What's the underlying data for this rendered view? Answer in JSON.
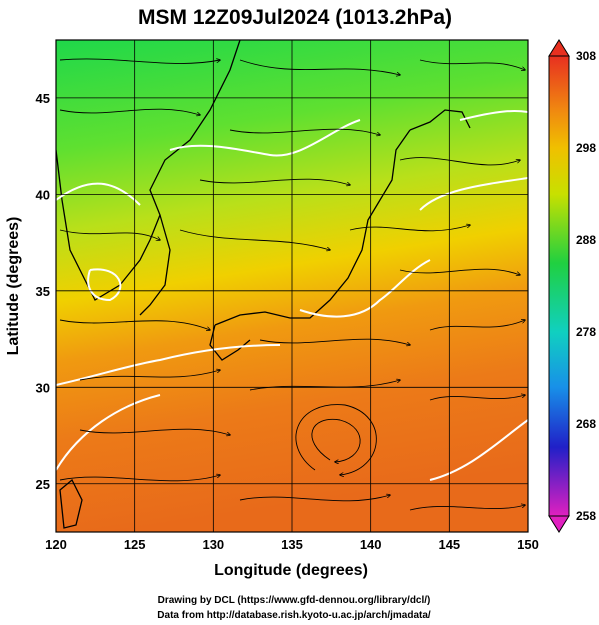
{
  "title": "MSM 12Z09Jul2024 (1013.2hPa)",
  "x_axis": {
    "label": "Longitude (degrees)",
    "ticks": [
      "120",
      "125",
      "130",
      "135",
      "140",
      "145",
      "150"
    ],
    "range": [
      120,
      150
    ]
  },
  "y_axis": {
    "label": "Latitude  (degrees)",
    "ticks": [
      "25",
      "30",
      "35",
      "40",
      "45"
    ],
    "range": [
      22.5,
      48
    ]
  },
  "colorbar": {
    "ticks": [
      "308",
      "298",
      "288",
      "278",
      "268",
      "258"
    ],
    "range": [
      258,
      308
    ]
  },
  "credits": {
    "line1": "Drawing by DCL (https://www.gfd-dennou.org/library/dcl/)",
    "line2": "Data from http://database.rish.kyoto-u.ac.jp/arch/jmadata/"
  },
  "map": {
    "field": "temperature shading with streamlines and white isotherms",
    "palette": [
      "#e020c0",
      "#2020d0",
      "#20c8e0",
      "#10c850",
      "#c8e000",
      "#f0a000",
      "#e04010"
    ]
  }
}
